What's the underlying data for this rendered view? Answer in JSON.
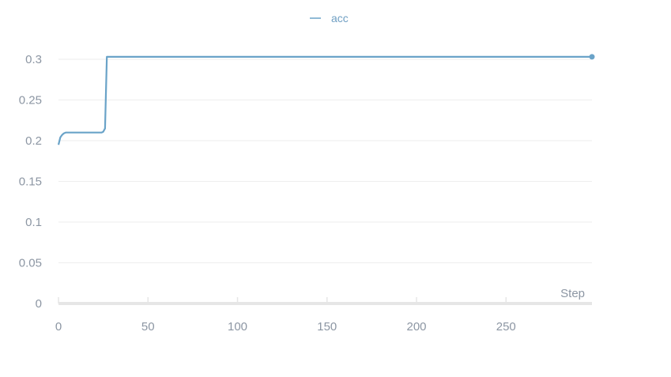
{
  "colors": {
    "series": "#6aa3c8",
    "grid": "#eeeeee",
    "axis": "#e6e6e6",
    "tick_text": "#8c96a3"
  },
  "chart_data": {
    "type": "line",
    "title": "",
    "xlabel": "Step",
    "ylabel": "",
    "xlim": [
      0,
      298
    ],
    "ylim": [
      0,
      0.3
    ],
    "x_ticks": [
      0,
      50,
      100,
      150,
      200,
      250
    ],
    "x_tick_labels": [
      "0",
      "50",
      "100",
      "150",
      "200",
      "250"
    ],
    "y_ticks": [
      0,
      0.05,
      0.1,
      0.15,
      0.2,
      0.25,
      0.3
    ],
    "y_tick_labels": [
      "0",
      "0.05",
      "0.1",
      "0.15",
      "0.2",
      "0.25",
      "0.3"
    ],
    "grid": true,
    "legend_position": "top-center",
    "series": [
      {
        "name": "acc",
        "color": "#6aa3c8",
        "x": [
          0,
          1,
          2,
          3,
          4,
          6,
          8,
          10,
          12,
          14,
          16,
          18,
          20,
          22,
          24,
          25,
          26,
          27,
          28,
          30,
          40,
          60,
          80,
          100,
          120,
          150,
          180,
          200,
          220,
          250,
          280,
          298
        ],
        "y": [
          0.195,
          0.204,
          0.207,
          0.209,
          0.21,
          0.21,
          0.21,
          0.21,
          0.21,
          0.21,
          0.21,
          0.21,
          0.21,
          0.21,
          0.21,
          0.211,
          0.215,
          0.303,
          0.303,
          0.303,
          0.303,
          0.303,
          0.303,
          0.303,
          0.303,
          0.303,
          0.303,
          0.303,
          0.303,
          0.303,
          0.303,
          0.303
        ]
      }
    ]
  }
}
